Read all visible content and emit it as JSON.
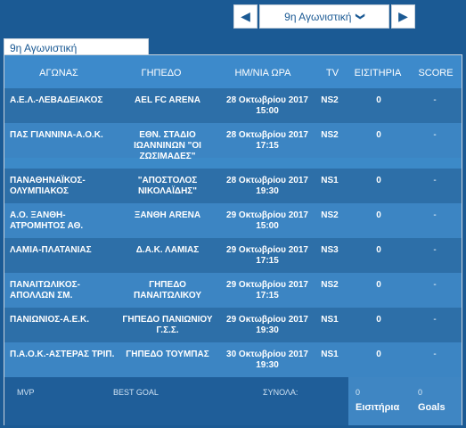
{
  "nav": {
    "prev_icon": "◀",
    "next_icon": "▶",
    "selected_round": "9η Αγωνιστική",
    "dropdown_icon": "❯"
  },
  "tab": {
    "label": "9η Αγωνιστική"
  },
  "table": {
    "headers": {
      "match": "ΑΓΩΝΑΣ",
      "venue": "ΓΗΠΕΔΟ",
      "datetime": "ΗΜ/ΝΙΑ ΩΡΑ",
      "tv": "TV",
      "tickets": "ΕΙΣΙΤΗΡΙΑ",
      "score": "SCORE"
    },
    "rows": [
      {
        "match": "Α.Ε.Λ.-ΛΕΒΑΔΕΙΑΚΟΣ",
        "venue": "AEL FC ARENA",
        "date": "28 Οκτωβρίου 2017",
        "time": "15:00",
        "tv": "NS2",
        "tickets": "0",
        "score": "-"
      },
      {
        "match": "ΠΑΣ ΓΙΑΝΝΙΝΑ-Α.Ο.Κ.",
        "venue": "ΕΘΝ. ΣΤΑΔΙΟ ΙΩΑΝΝΙΝΩΝ \"ΟΙ ΖΩΣΙΜΑΔΕΣ\"",
        "date": "28 Οκτωβρίου 2017",
        "time": "17:15",
        "tv": "NS2",
        "tickets": "0",
        "score": "-"
      },
      {
        "match": "ΠΑΝΑΘΗΝΑΪΚΟΣ-ΟΛΥΜΠΙΑΚΟΣ",
        "venue": "\"ΑΠΟΣΤΟΛΟΣ ΝΙΚΟΛΑΪΔΗΣ\"",
        "date": "28 Οκτωβρίου 2017",
        "time": "19:30",
        "tv": "NS1",
        "tickets": "0",
        "score": "-"
      },
      {
        "match": "Α.Ο. ΞΑΝΘΗ-ΑΤΡΟΜΗΤΟΣ ΑΘ.",
        "venue": "ΞΑΝΘΗ ARENA",
        "date": "29 Οκτωβρίου 2017",
        "time": "15:00",
        "tv": "NS2",
        "tickets": "0",
        "score": "-"
      },
      {
        "match": "ΛΑΜΙΑ-ΠΛΑΤΑΝΙΑΣ",
        "venue": "Δ.Α.Κ. ΛΑΜΙΑΣ",
        "date": "29 Οκτωβρίου 2017",
        "time": "17:15",
        "tv": "NS3",
        "tickets": "0",
        "score": "-"
      },
      {
        "match": "ΠΑΝΑΙΤΩΛΙΚΟΣ-ΑΠΟΛΛΩΝ ΣΜ.",
        "venue": "ΓΗΠΕΔΟ ΠΑΝΑΙΤΩΛΙΚΟΥ",
        "date": "29 Οκτωβρίου 2017",
        "time": "17:15",
        "tv": "NS2",
        "tickets": "0",
        "score": "-"
      },
      {
        "match": "ΠΑΝΙΩΝΙΟΣ-Α.Ε.Κ.",
        "venue": "ΓΗΠΕΔΟ ΠΑΝΙΩΝΙΟΥ Γ.Σ.Σ.",
        "date": "29 Οκτωβρίου 2017",
        "time": "19:30",
        "tv": "NS1",
        "tickets": "0",
        "score": "-"
      },
      {
        "match": "Π.Α.Ο.Κ.-ΑΣΤΕΡΑΣ ΤΡΙΠ.",
        "venue": "ΓΗΠΕΔΟ ΤΟΥΜΠΑΣ",
        "date": "30 Οκτωβρίου 2017",
        "time": "19:30",
        "tv": "NS1",
        "tickets": "0",
        "score": "-"
      }
    ]
  },
  "footer": {
    "mvp": "MVP",
    "best_goal": "BEST GOAL",
    "totals": "ΣΥΝΟΛΑ:",
    "tickets_value": "0",
    "tickets_label": "Εισιτήρια",
    "goals_value": "0",
    "goals_label": "Goals"
  }
}
